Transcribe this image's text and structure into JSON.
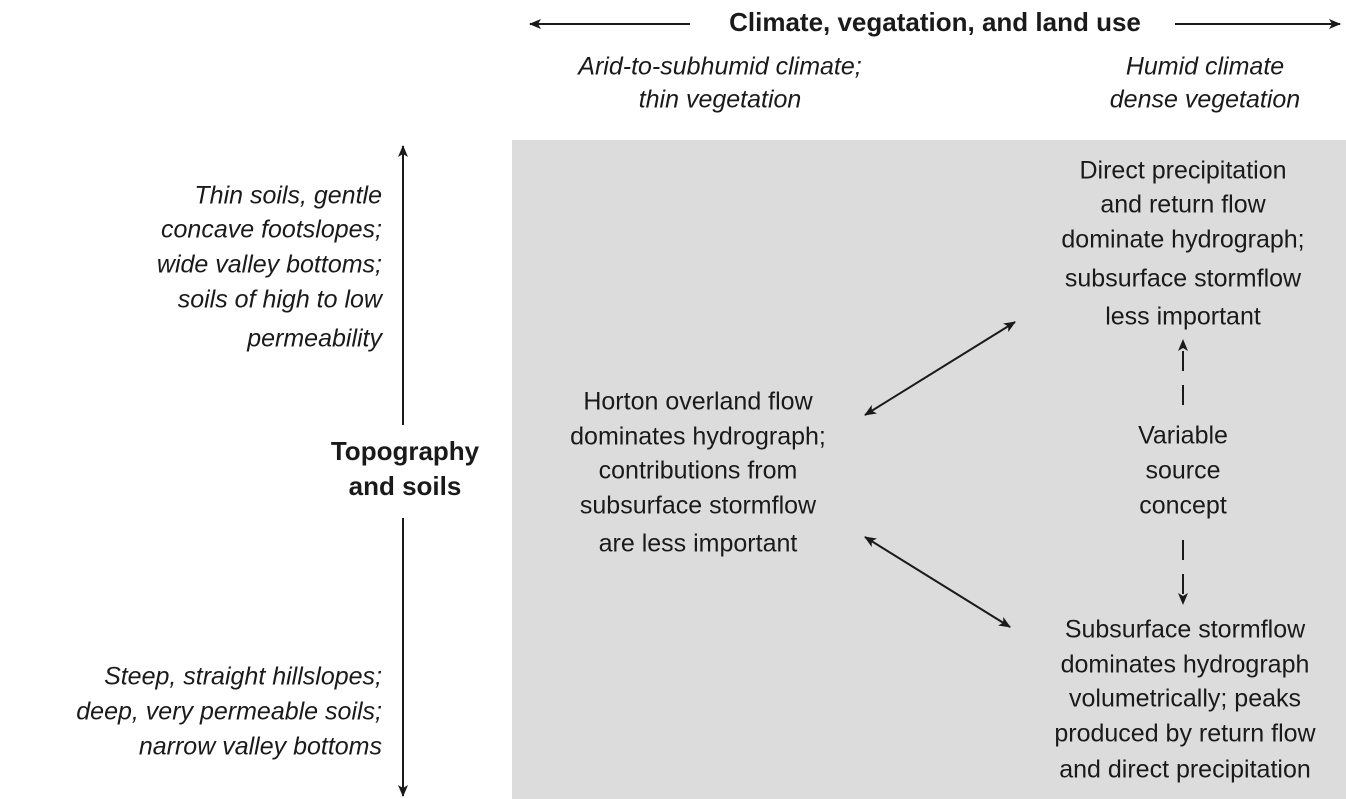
{
  "top_axis": {
    "label": "Climate, vegatation, and land use",
    "left_label": [
      "Arid-to-subhumid climate;",
      "thin vegetation"
    ],
    "right_label": [
      "Humid climate",
      "dense vegetation"
    ]
  },
  "side_axis": {
    "label": [
      "Topography",
      "and soils"
    ],
    "top_label": [
      "Thin soils, gentle",
      "concave footslopes;",
      "wide valley bottoms;",
      "soils of high to low",
      "permeability"
    ],
    "bottom_label": [
      "Steep, straight hillslopes;",
      "deep, very permeable soils;",
      "narrow valley bottoms"
    ]
  },
  "nodes": [
    {
      "label": [
        "Horton overland flow",
        "dominates hydrograph;",
        "contributions from",
        "subsurface stormflow",
        "are less important"
      ]
    },
    {
      "label": [
        "Direct precipitation",
        "and return flow",
        "dominate hydrograph;",
        "subsurface stormflow",
        "less important"
      ]
    },
    {
      "label": [
        "Variable",
        "source",
        "concept"
      ]
    },
    {
      "label": [
        "Subsurface stormflow",
        "dominates hydrograph",
        "volumetrically; peaks",
        "produced by return flow",
        "and direct precipitation"
      ]
    }
  ]
}
